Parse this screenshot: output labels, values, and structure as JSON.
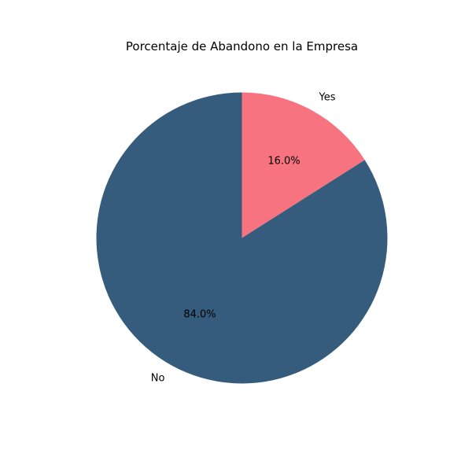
{
  "chart_data": {
    "type": "pie",
    "title": "Porcentaje de Abandono en la Empresa",
    "slices": [
      {
        "label": "Yes",
        "value": 16.0,
        "pct_label": "16.0%",
        "color": "#f77380"
      },
      {
        "label": "No",
        "value": 84.0,
        "pct_label": "84.0%",
        "color": "#355c7d"
      }
    ],
    "start_angle_deg": 90,
    "direction": "clockwise",
    "legend": "none"
  }
}
